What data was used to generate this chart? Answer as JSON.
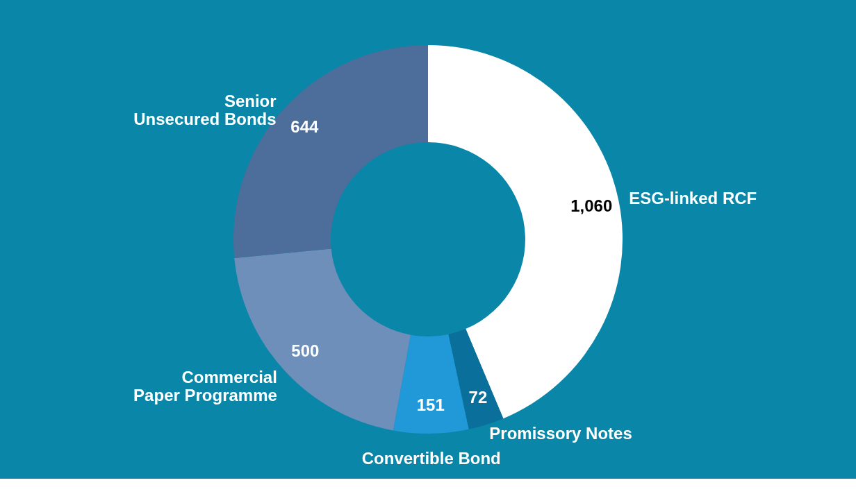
{
  "chart_data": {
    "type": "donut",
    "categories": [
      "ESG-linked RCF",
      "Promissory Notes",
      "Convertible Bond",
      "Commercial Paper Programme",
      "Senior Unsecured Bonds"
    ],
    "values": [
      1060,
      72,
      151,
      500,
      644
    ],
    "value_labels": [
      "1,060",
      "72",
      "151",
      "500",
      "644"
    ],
    "colors": [
      "#ffffff",
      "#0b6f9c",
      "#2198d8",
      "#6f8fbb",
      "#4d6d9b"
    ]
  }
}
